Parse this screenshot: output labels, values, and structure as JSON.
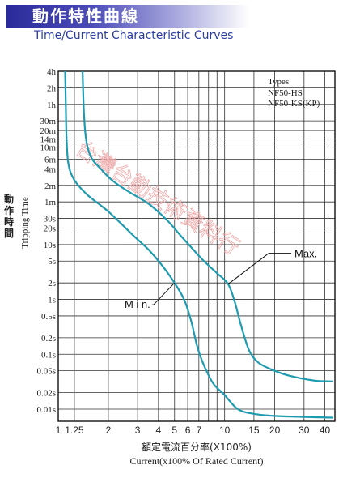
{
  "header": {
    "title_zh": "動作特性曲線",
    "title_en": "Time/Current Characteristic Curves"
  },
  "chart_data": {
    "type": "line",
    "xlabel_zh": "額定電流百分率(X100%)",
    "xlabel_en": "Current(x100% Of Rated Current)",
    "ylabel_zh": "動作時間",
    "ylabel_en": "Tripping Time",
    "x_scale": "log",
    "y_scale": "log",
    "xlim": [
      1,
      46
    ],
    "x_ticks": [
      {
        "value": 1,
        "label": "1"
      },
      {
        "value": 1.25,
        "label": "1.25"
      },
      {
        "value": 2,
        "label": "2"
      },
      {
        "value": 3,
        "label": "3"
      },
      {
        "value": 4,
        "label": "4"
      },
      {
        "value": 5,
        "label": "5"
      },
      {
        "value": 6,
        "label": "6"
      },
      {
        "value": 7,
        "label": "7"
      },
      {
        "value": 10,
        "label": "10"
      },
      {
        "value": 15,
        "label": "15"
      },
      {
        "value": 20,
        "label": "20"
      },
      {
        "value": 30,
        "label": "30"
      },
      {
        "value": 40,
        "label": "40"
      }
    ],
    "x_grid": [
      1,
      1.25,
      2,
      3,
      4,
      5,
      6,
      7,
      8,
      9,
      10,
      15,
      20,
      30,
      40
    ],
    "y_unit": "seconds",
    "ylim": [
      0.006,
      14400
    ],
    "y_ticks": [
      {
        "value": 14400,
        "label": "4h"
      },
      {
        "value": 7200,
        "label": "2h"
      },
      {
        "value": 3600,
        "label": "1h"
      },
      {
        "value": 1800,
        "label": "30m"
      },
      {
        "value": 1200,
        "label": "20m"
      },
      {
        "value": 840,
        "label": "14m"
      },
      {
        "value": 600,
        "label": "10m"
      },
      {
        "value": 360,
        "label": "6m"
      },
      {
        "value": 240,
        "label": "4m"
      },
      {
        "value": 120,
        "label": "2m"
      },
      {
        "value": 60,
        "label": "1m"
      },
      {
        "value": 30,
        "label": "30s"
      },
      {
        "value": 20,
        "label": "20s"
      },
      {
        "value": 10,
        "label": "10s"
      },
      {
        "value": 5,
        "label": "5s"
      },
      {
        "value": 2,
        "label": "2s"
      },
      {
        "value": 1,
        "label": "1s"
      },
      {
        "value": 0.5,
        "label": "0.5s"
      },
      {
        "value": 0.2,
        "label": "0.2s"
      },
      {
        "value": 0.1,
        "label": "0.1s"
      },
      {
        "value": 0.05,
        "label": "0.05s"
      },
      {
        "value": 0.02,
        "label": "0.02s"
      },
      {
        "value": 0.01,
        "label": "0.01s"
      }
    ],
    "legend": {
      "title": "Types",
      "items": [
        "NF50-HS",
        "NF50-KS(KP)"
      ],
      "placement": "top-right"
    },
    "series": [
      {
        "name": "Max.",
        "color": "#1f9bb0",
        "points": [
          [
            1.4,
            14400
          ],
          [
            1.42,
            3600
          ],
          [
            1.45,
            1200
          ],
          [
            1.5,
            600
          ],
          [
            1.6,
            360
          ],
          [
            1.8,
            240
          ],
          [
            2.1,
            150
          ],
          [
            2.6,
            95
          ],
          [
            3.5,
            55
          ],
          [
            4.5,
            28
          ],
          [
            5.5,
            14
          ],
          [
            6.5,
            8
          ],
          [
            7.5,
            5
          ],
          [
            9,
            3
          ],
          [
            10.5,
            1.9
          ],
          [
            11.5,
            0.9
          ],
          [
            12.5,
            0.35
          ],
          [
            14,
            0.12
          ],
          [
            16,
            0.07
          ],
          [
            20,
            0.05
          ],
          [
            25,
            0.04
          ],
          [
            35,
            0.033
          ],
          [
            45,
            0.032
          ]
        ]
      },
      {
        "name": "Min.",
        "color": "#1f9bb0",
        "points": [
          [
            1.1,
            14400
          ],
          [
            1.11,
            3600
          ],
          [
            1.12,
            1000
          ],
          [
            1.15,
            300
          ],
          [
            1.25,
            150
          ],
          [
            1.5,
            80
          ],
          [
            2,
            40
          ],
          [
            2.8,
            15
          ],
          [
            3.5,
            8
          ],
          [
            4.2,
            4.2
          ],
          [
            5,
            2
          ],
          [
            5.7,
            1
          ],
          [
            6.3,
            0.4
          ],
          [
            6.8,
            0.15
          ],
          [
            7.4,
            0.07
          ],
          [
            8.5,
            0.03
          ],
          [
            10,
            0.018
          ],
          [
            12,
            0.01
          ],
          [
            15,
            0.0082
          ],
          [
            20,
            0.0075
          ],
          [
            30,
            0.0072
          ],
          [
            45,
            0.007
          ]
        ]
      }
    ],
    "annotations": [
      {
        "text": "Max.",
        "target": [
          10.5,
          1.9
        ],
        "label_position": "upper-right of target"
      },
      {
        "text": "M i n.",
        "target": [
          5,
          2
        ],
        "label_position": "lower-left of target"
      }
    ],
    "watermark": "台灣台勤技術資料行"
  }
}
